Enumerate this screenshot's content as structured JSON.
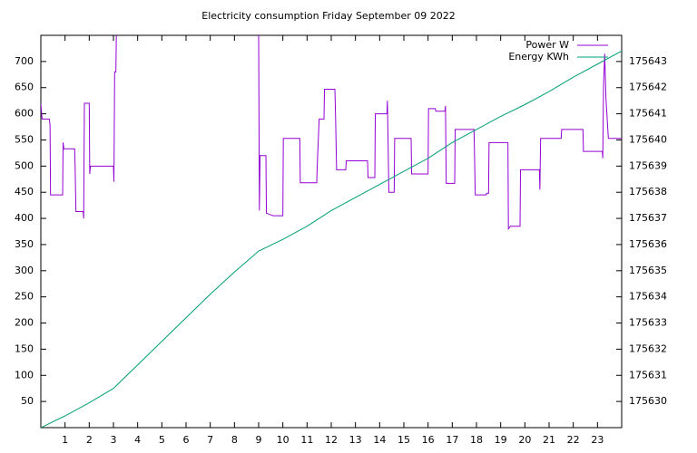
{
  "chart_data": {
    "type": "line",
    "title": "Electricity consumption Friday September 09 2022",
    "xlim": [
      0,
      24
    ],
    "xticks": [
      1,
      2,
      3,
      4,
      5,
      6,
      7,
      8,
      9,
      10,
      11,
      12,
      13,
      14,
      15,
      16,
      17,
      18,
      19,
      20,
      21,
      22,
      23
    ],
    "ylim": [
      0,
      750
    ],
    "yticks": [
      50,
      100,
      150,
      200,
      250,
      300,
      350,
      400,
      450,
      500,
      550,
      600,
      650,
      700
    ],
    "y2lim": [
      175629,
      175644
    ],
    "y2ticks": [
      175630,
      175631,
      175632,
      175633,
      175634,
      175635,
      175636,
      175637,
      175638,
      175639,
      175640,
      175641,
      175642,
      175643
    ],
    "legend": "top-right",
    "series": [
      {
        "name": "Power W",
        "color": "#9400d3",
        "x": [
          0,
          0.05,
          0.35,
          0.38,
          0.4,
          0.9,
          0.92,
          0.95,
          1.4,
          1.42,
          1.45,
          1.75,
          1.77,
          1.8,
          2.0,
          2.02,
          2.05,
          3.0,
          3.02,
          3.05,
          3.1,
          3.12,
          3.13,
          9.0,
          9.03,
          9.06,
          9.3,
          9.32,
          9.6,
          10.0,
          10.02,
          10.7,
          10.72,
          11.4,
          11.42,
          11.5,
          11.7,
          11.72,
          12.15,
          12.18,
          12.22,
          12.6,
          12.62,
          13.5,
          13.52,
          13.8,
          13.82,
          14.3,
          14.32,
          14.35,
          14.38,
          14.6,
          14.62,
          15.3,
          15.32,
          16.0,
          16.02,
          16.3,
          16.32,
          16.7,
          16.72,
          16.75,
          17.1,
          17.12,
          17.9,
          17.92,
          17.95,
          18.4,
          18.42,
          18.5,
          18.52,
          19.3,
          19.32,
          19.4,
          19.8,
          19.82,
          20.6,
          20.62,
          20.65,
          21.5,
          21.52,
          22.4,
          22.42,
          23.2,
          23.22,
          23.25,
          23.3,
          23.35,
          23.45,
          24
        ],
        "values": [
          620,
          590,
          590,
          578,
          445,
          445,
          545,
          533,
          533,
          490,
          413,
          413,
          400,
          620,
          620,
          485,
          500,
          500,
          470,
          680,
          680,
          750,
          null,
          750,
          415,
          520,
          520,
          410,
          405,
          405,
          553,
          553,
          468,
          468,
          500,
          590,
          590,
          647,
          647,
          590,
          493,
          493,
          510,
          510,
          478,
          478,
          600,
          600,
          625,
          540,
          450,
          450,
          553,
          553,
          485,
          485,
          610,
          610,
          605,
          605,
          615,
          467,
          467,
          570,
          570,
          520,
          445,
          445,
          448,
          448,
          545,
          545,
          380,
          385,
          385,
          493,
          493,
          455,
          553,
          553,
          570,
          570,
          528,
          528,
          515,
          655,
          715,
          630,
          553,
          553
        ]
      },
      {
        "name": "Energy KWh",
        "color": "#009e73",
        "axis": "y2",
        "x": [
          0,
          1,
          2,
          3,
          4,
          5,
          6,
          7,
          8,
          9,
          10,
          11,
          12,
          13,
          14,
          15,
          16,
          17,
          18,
          19,
          20,
          21,
          22,
          23,
          24
        ],
        "values": [
          175629,
          175629.45,
          175629.95,
          175630.5,
          175631.4,
          175632.3,
          175633.2,
          175634.1,
          175634.95,
          175635.75,
          175636.2,
          175636.7,
          175637.3,
          175637.8,
          175638.3,
          175638.8,
          175639.3,
          175639.9,
          175640.4,
          175640.9,
          175641.35,
          175641.85,
          175642.4,
          175642.9,
          175643.4
        ]
      }
    ]
  }
}
